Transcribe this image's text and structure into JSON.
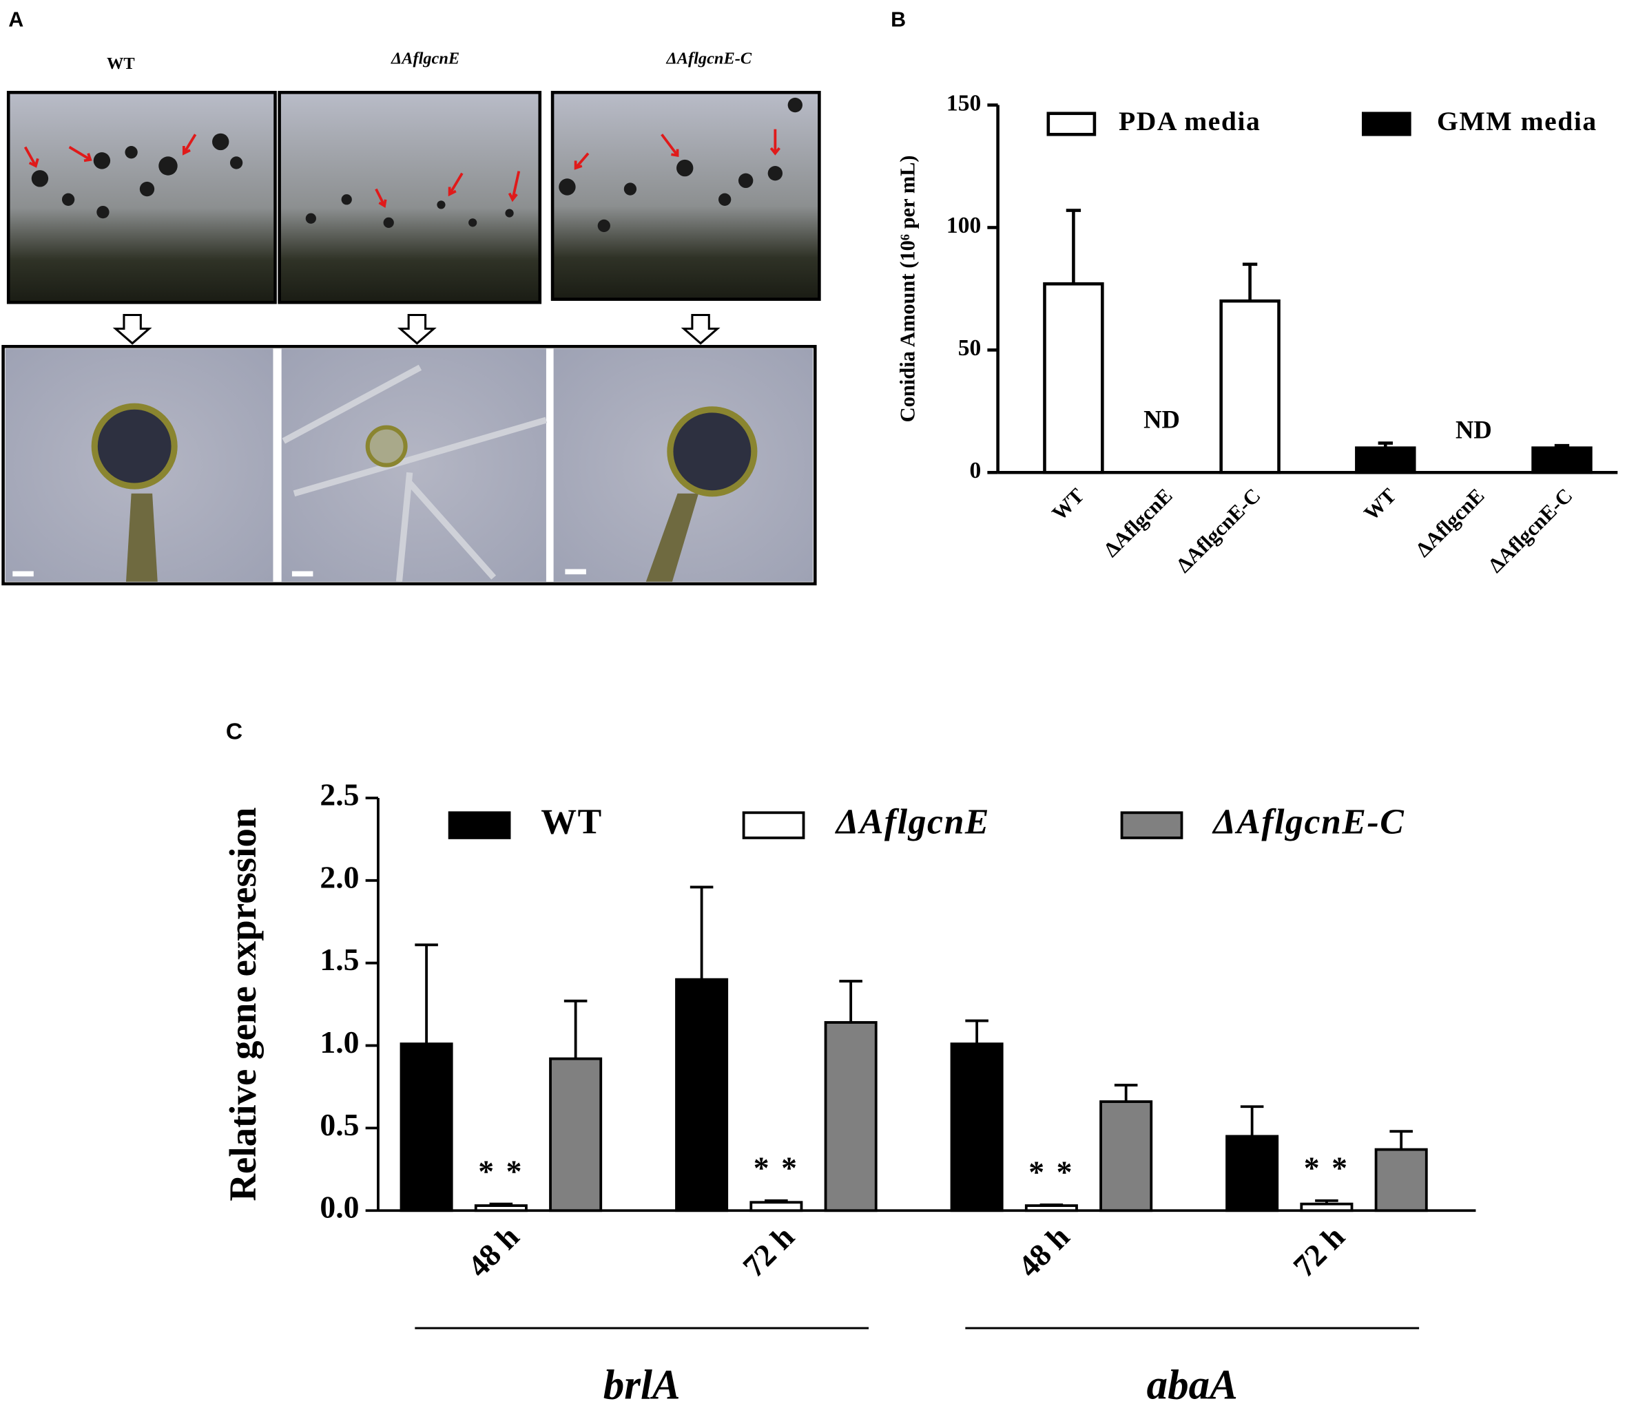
{
  "panel_a": {
    "panel": "A",
    "titles": [
      "WT",
      "ΔAflgcnE",
      "ΔAflgcnE-C"
    ]
  },
  "chart_data": [
    {
      "panel": "B",
      "type": "bar",
      "ylabel": "Conidia Amount (10⁶ per mL)",
      "ylim": [
        0,
        150
      ],
      "yticks": [
        0,
        50,
        100,
        150
      ],
      "categories": [
        "WT",
        "ΔAflgcnE",
        "ΔAflgcnE-C"
      ],
      "legend": "top",
      "series": [
        {
          "name": "PDA media",
          "color": "#ffffff",
          "values": [
            77,
            null,
            70
          ],
          "errors": [
            30,
            null,
            15
          ],
          "value_labels": [
            null,
            "ND",
            null
          ]
        },
        {
          "name": "GMM media",
          "color": "#000000",
          "values": [
            10,
            null,
            10
          ],
          "errors": [
            2,
            null,
            1
          ],
          "value_labels": [
            null,
            "ND",
            null
          ]
        }
      ]
    },
    {
      "panel": "C",
      "type": "bar",
      "ylabel": "Relative gene expression",
      "ylim": [
        0,
        2.5
      ],
      "yticks": [
        {
          "value": 0,
          "label": "0.0"
        },
        0.5,
        {
          "value": 1,
          "label": "1.0"
        },
        1.5,
        {
          "value": 2,
          "label": "2.0"
        },
        2.5
      ],
      "categories": [
        "48 h",
        "72 h",
        "48 h",
        "72 h"
      ],
      "groups": [
        "brlA",
        "abaA"
      ],
      "legend": "top",
      "series": [
        {
          "name": "WT",
          "color": "#000000",
          "values": [
            1.01,
            1.4,
            1.01,
            0.45
          ],
          "errors": [
            0.6,
            0.56,
            0.14,
            0.18
          ]
        },
        {
          "name": "ΔAflgcnE",
          "color": "#ffffff",
          "values": [
            0.03,
            0.05,
            0.03,
            0.04
          ],
          "errors": [
            0.01,
            0.01,
            0.005,
            0.02
          ],
          "significance": [
            "* *",
            "* *",
            "* *",
            "* *"
          ]
        },
        {
          "name": "ΔAflgcnE-C",
          "color": "#808080",
          "values": [
            0.92,
            1.14,
            0.66,
            0.37
          ],
          "errors": [
            0.35,
            0.25,
            0.1,
            0.11
          ]
        }
      ]
    }
  ]
}
